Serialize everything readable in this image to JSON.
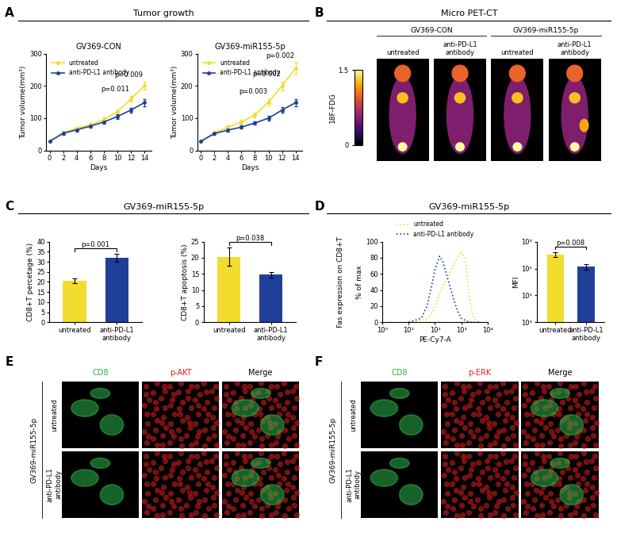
{
  "panels": [
    {
      "letter": "A",
      "header": "Tumor growth"
    },
    {
      "letter": "B",
      "header": "Micro PET-CT"
    },
    {
      "letter": "C",
      "header": "GV369-miR155-5p"
    },
    {
      "letter": "D",
      "header": "GV369-miR155-5p"
    },
    {
      "letter": "E"
    },
    {
      "letter": "F"
    }
  ],
  "chart_data": [
    {
      "panel": "A",
      "type": "line",
      "title": "GV369-CON",
      "x": [
        0,
        2,
        4,
        6,
        8,
        10,
        12,
        14
      ],
      "series": [
        {
          "name": "untreated",
          "color": "#f2dc2e",
          "values": [
            28,
            55,
            68,
            80,
            95,
            120,
            160,
            200
          ],
          "errors": [
            3,
            4,
            5,
            6,
            7,
            8,
            9,
            12
          ]
        },
        {
          "name": "anti-PD-L1 antibody",
          "color": "#1f3f99",
          "values": [
            28,
            53,
            64,
            75,
            88,
            105,
            125,
            148
          ],
          "errors": [
            3,
            4,
            5,
            5,
            6,
            7,
            8,
            10
          ]
        }
      ],
      "marker": "o",
      "legend": "upper left",
      "xlabel": "Days",
      "ylabel": "Tumor volume(mm³)",
      "xlim": [
        -0.5,
        15
      ],
      "xticks": [
        0,
        2,
        4,
        6,
        8,
        10,
        12,
        14
      ],
      "ylim": [
        0,
        300
      ],
      "yticks": [
        0,
        100,
        200,
        300
      ],
      "annotations": [
        {
          "text": "p=0.011",
          "x": 12
        },
        {
          "text": "p=0.009",
          "x": 14
        }
      ]
    },
    {
      "panel": "A",
      "type": "line",
      "title": "GV369-miR155-5p",
      "x": [
        0,
        2,
        4,
        6,
        8,
        10,
        12,
        14
      ],
      "series": [
        {
          "name": "untreated",
          "color": "#f2dc2e",
          "values": [
            28,
            55,
            72,
            88,
            110,
            150,
            200,
            255
          ],
          "errors": [
            3,
            4,
            5,
            6,
            8,
            10,
            14,
            18
          ]
        },
        {
          "name": "anti-PD-L1 antibody",
          "color": "#1f3f99",
          "values": [
            28,
            52,
            63,
            72,
            85,
            100,
            125,
            148
          ],
          "errors": [
            3,
            3,
            4,
            5,
            6,
            7,
            9,
            11
          ]
        }
      ],
      "marker": "o",
      "legend": "upper left",
      "xlabel": "Days",
      "ylabel": "Tumor volume(mm³)",
      "xlim": [
        -0.5,
        15
      ],
      "xticks": [
        0,
        2,
        4,
        6,
        8,
        10,
        12,
        14
      ],
      "ylim": [
        0,
        300
      ],
      "yticks": [
        0,
        100,
        200,
        300
      ],
      "annotations": [
        {
          "text": "p=0.003",
          "x": 10
        },
        {
          "text": "p=0.002",
          "x": 12
        },
        {
          "text": "p=0.002",
          "x": 14
        }
      ]
    },
    {
      "panel": "C",
      "type": "bar",
      "categories": [
        "untreated",
        "anti-PD-L1 antibody"
      ],
      "values": [
        20.5,
        32
      ],
      "errors": [
        1.3,
        1.8
      ],
      "colors": [
        "#f2dc2e",
        "#1f3f99"
      ],
      "ylabel": "CD8+T percetage (%)",
      "ylim": [
        0,
        40
      ],
      "yticks": [
        0,
        5,
        10,
        15,
        20,
        25,
        30,
        35,
        40
      ],
      "annotations": [
        {
          "text": "p=0.001"
        }
      ]
    },
    {
      "panel": "C",
      "type": "bar",
      "categories": [
        "untreated",
        "anti-PD-L1 antibody"
      ],
      "values": [
        20.3,
        14.7
      ],
      "errors": [
        2.8,
        0.8
      ],
      "colors": [
        "#f2dc2e",
        "#1f3f99"
      ],
      "ylabel": "CD8+T apoptosis (%)",
      "ylim": [
        0,
        25
      ],
      "yticks": [
        0,
        5,
        10,
        15,
        20,
        25
      ],
      "annotations": [
        {
          "text": "p=0.038"
        }
      ]
    },
    {
      "panel": "D",
      "type": "line",
      "log": "x",
      "x": [
        10,
        30,
        50,
        80,
        100,
        150,
        200,
        300,
        500,
        700,
        1000,
        1500,
        2000,
        3000,
        5000
      ],
      "series": [
        {
          "name": "untreated",
          "color": "#f2dc2e",
          "values": [
            0,
            2,
            5,
            12,
            20,
            35,
            45,
            55,
            70,
            80,
            88,
            75,
            30,
            5,
            0
          ]
        },
        {
          "name": "anti-PD-L1 antibody",
          "color": "#1f3f99",
          "values": [
            0,
            5,
            20,
            50,
            65,
            82,
            75,
            55,
            30,
            15,
            5,
            2,
            0,
            0,
            0
          ]
        }
      ],
      "line_style": "dotted",
      "legend": "top",
      "y_title": "Fas expression on CD8+T",
      "xlabel": "PE-Cy7-A",
      "ylabel": "% of max",
      "xlim": [
        1,
        10000
      ],
      "xticks": [
        {
          "value": 1,
          "label": "10⁰"
        },
        {
          "value": 10,
          "label": "10¹"
        },
        {
          "value": 100,
          "label": "10²"
        },
        {
          "value": 1000,
          "label": "10³"
        },
        {
          "value": 10000,
          "label": "10⁴"
        }
      ],
      "ylim": [
        0,
        100
      ],
      "yticks": [
        0,
        20,
        40,
        60,
        80,
        100
      ]
    },
    {
      "panel": "D",
      "type": "bar",
      "log": "y",
      "categories": [
        "untreated",
        "anti-PD-L1 antibody"
      ],
      "values": [
        330,
        120
      ],
      "errors": [
        70,
        30
      ],
      "colors": [
        "#f2dc2e",
        "#1f3f99"
      ],
      "ylabel": "MFI",
      "ylim": [
        1,
        1000
      ],
      "yticks": [
        {
          "value": 1,
          "label": "10⁰"
        },
        {
          "value": 10,
          "label": "10¹"
        },
        {
          "value": 100,
          "label": "10²"
        },
        {
          "value": 1000,
          "label": "10³"
        }
      ],
      "annotations": [
        {
          "text": "p=0.008"
        }
      ]
    }
  ],
  "pet_ct": {
    "panel": "B",
    "groups": [
      {
        "name": "GV369-CON",
        "columns": [
          "untreated",
          "anti-PD-L1 antibody"
        ]
      },
      {
        "name": "GV369-miR155-5p",
        "columns": [
          "untreated",
          "anti-PD-L1 antibody"
        ]
      }
    ],
    "colorbar": {
      "label": "18F-FDG",
      "range": [
        0,
        1.5
      ],
      "ticks": [
        0,
        1.5
      ]
    }
  },
  "microscopy": [
    {
      "panel": "E",
      "group": "GV369-miR155-5p",
      "columns": [
        {
          "name": "CD8",
          "color": "#2bb34a"
        },
        {
          "name": "p-AKT",
          "color": "#e02020"
        },
        {
          "name": "Merge",
          "color": "#000000"
        }
      ],
      "rows": [
        "untreated",
        "anti-PD-L1 antibody"
      ]
    },
    {
      "panel": "F",
      "group": "GV369-miR155-5p",
      "columns": [
        {
          "name": "CD8",
          "color": "#2bb34a"
        },
        {
          "name": "p-ERK",
          "color": "#e02020"
        },
        {
          "name": "Merge",
          "color": "#000000"
        }
      ],
      "rows": [
        "untreated",
        "anti-PD-L1 antibody"
      ]
    }
  ]
}
